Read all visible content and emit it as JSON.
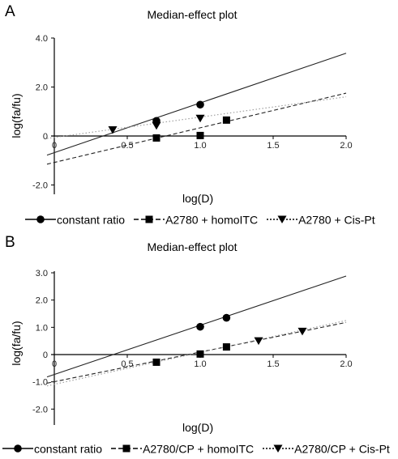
{
  "chart_data": [
    {
      "type": "line",
      "panel": "A",
      "title": "Median-effect plot",
      "xlabel": "log(D)",
      "ylabel": "log(fa/fu)",
      "xlim": [
        0,
        2.0
      ],
      "ylim": [
        -2.5,
        4.0
      ],
      "x_ticks": [
        "0",
        "0.5",
        "1.0",
        "1.5",
        "2.0"
      ],
      "y_ticks": [
        "4.0",
        "2.0",
        "0",
        "-2.0"
      ],
      "y_tick_values": [
        4.0,
        2.0,
        0,
        -2.0
      ],
      "x_tick_values": [
        0,
        0.5,
        1.0,
        1.5,
        2.0
      ],
      "grid": false,
      "legend_position": "bottom",
      "series": [
        {
          "name": "constant ratio",
          "marker": "circle",
          "line": "solid",
          "points": [
            [
              0.7,
              0.62
            ],
            [
              1.0,
              1.28
            ]
          ],
          "fit": [
            [
              -0.05,
              -0.78
            ],
            [
              2.0,
              3.38
            ]
          ]
        },
        {
          "name": "A2780 + homoITC",
          "marker": "square",
          "line": "dashed",
          "points": [
            [
              0.7,
              -0.08
            ],
            [
              1.0,
              0.02
            ],
            [
              1.18,
              0.65
            ]
          ],
          "fit": [
            [
              -0.05,
              -1.15
            ],
            [
              2.0,
              1.75
            ]
          ]
        },
        {
          "name": "A2780 + Cis-Pt",
          "marker": "triangle",
          "line": "dotted",
          "points": [
            [
              0.4,
              0.25
            ],
            [
              0.7,
              0.42
            ],
            [
              1.0,
              0.72
            ]
          ],
          "fit": [
            [
              -0.05,
              -0.1
            ],
            [
              2.0,
              1.6
            ]
          ]
        }
      ]
    },
    {
      "type": "line",
      "panel": "B",
      "title": "Median-effect plot",
      "xlabel": "log(D)",
      "ylabel": "log(fa/fu)",
      "xlim": [
        0,
        2.0
      ],
      "ylim": [
        -2.5,
        3.0
      ],
      "x_ticks": [
        "0",
        "0.5",
        "1.0",
        "1.5",
        "2.0"
      ],
      "y_ticks": [
        "3.0",
        "2.0",
        "1.0",
        "0",
        "-1.0",
        "-2.0"
      ],
      "y_tick_values": [
        3.0,
        2.0,
        1.0,
        0,
        -1.0,
        -2.0
      ],
      "x_tick_values": [
        0,
        0.5,
        1.0,
        1.5,
        2.0
      ],
      "grid": false,
      "legend_position": "bottom",
      "series": [
        {
          "name": "constant ratio",
          "marker": "circle",
          "line": "solid",
          "points": [
            [
              1.0,
              1.02
            ],
            [
              1.18,
              1.35
            ]
          ],
          "fit": [
            [
              -0.05,
              -0.82
            ],
            [
              2.0,
              2.88
            ]
          ]
        },
        {
          "name": "A2780/CP + homoITC",
          "marker": "square",
          "line": "dashed",
          "points": [
            [
              0.7,
              -0.28
            ],
            [
              1.0,
              0.02
            ],
            [
              1.18,
              0.28
            ]
          ],
          "fit": [
            [
              -0.05,
              -1.05
            ],
            [
              2.0,
              1.18
            ]
          ]
        },
        {
          "name": "A2780/CP + Cis-Pt",
          "marker": "triangle",
          "line": "dotted",
          "points": [
            [
              1.4,
              0.5
            ],
            [
              1.7,
              0.85
            ]
          ],
          "fit": [
            [
              -0.05,
              -1.15
            ],
            [
              2.0,
              1.25
            ]
          ]
        }
      ]
    }
  ]
}
